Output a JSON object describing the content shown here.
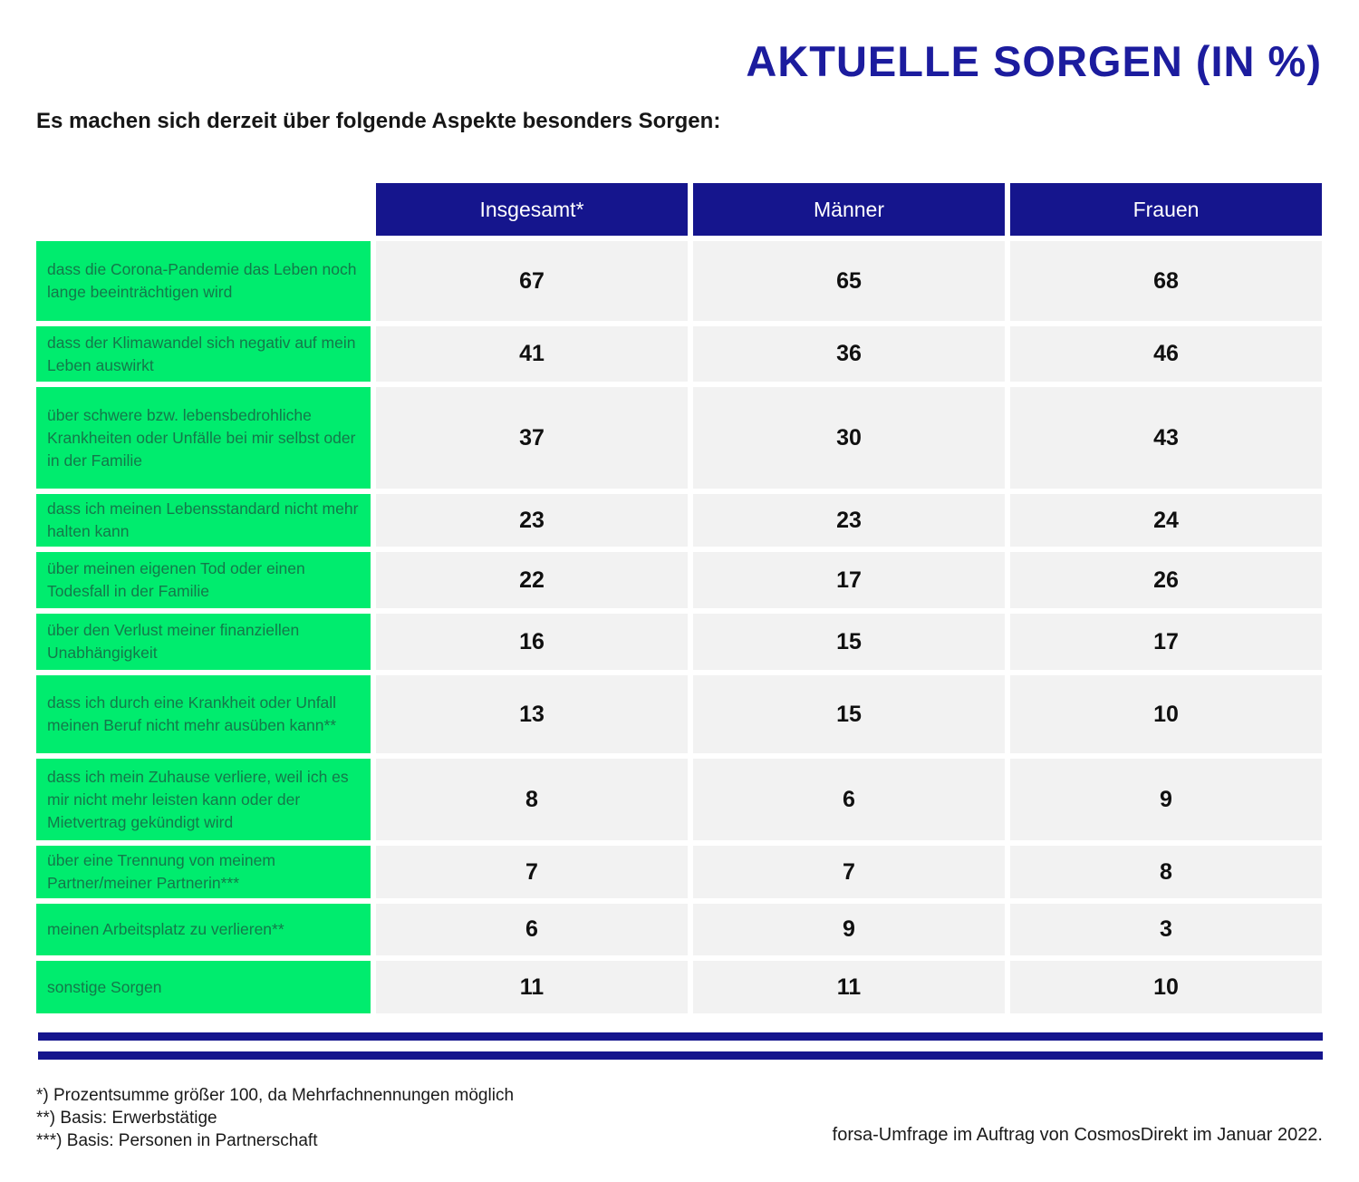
{
  "title": "AKTUELLE SORGEN (IN %)",
  "subtitle": "Es machen sich derzeit über folgende Aspekte besonders Sorgen:",
  "table": {
    "columns": [
      "Insgesamt*",
      "Männer",
      "Frauen"
    ],
    "rows": [
      {
        "label": "dass die Corona-Pandemie das Leben noch lange beeinträchtigen wird",
        "values": [
          67,
          65,
          68
        ]
      },
      {
        "label": "dass der Klimawandel sich negativ auf mein Leben auswirkt",
        "values": [
          41,
          36,
          46
        ]
      },
      {
        "label": "über schwere bzw. lebensbedrohliche Krankheiten oder Unfälle bei mir selbst oder in der Familie",
        "values": [
          37,
          30,
          43
        ]
      },
      {
        "label": "dass ich meinen Lebensstandard nicht mehr halten kann",
        "values": [
          23,
          23,
          24
        ]
      },
      {
        "label": "über meinen eigenen Tod oder einen Todesfall in der Familie",
        "values": [
          22,
          17,
          26
        ]
      },
      {
        "label": "über den Verlust meiner finanziellen Unabhängigkeit",
        "values": [
          16,
          15,
          17
        ]
      },
      {
        "label": "dass ich durch eine Krankheit oder Unfall meinen Beruf nicht mehr ausüben kann**",
        "values": [
          13,
          15,
          10
        ]
      },
      {
        "label": "dass ich mein Zuhause verliere, weil ich es mir nicht mehr leisten kann oder der Mietvertrag gekündigt wird",
        "values": [
          8,
          6,
          9
        ]
      },
      {
        "label": "über eine Trennung von meinem Partner/meiner Partnerin***",
        "values": [
          7,
          7,
          8
        ]
      },
      {
        "label": "meinen Arbeitsplatz zu verlieren**",
        "values": [
          6,
          9,
          3
        ]
      },
      {
        "label": "sonstige Sorgen",
        "values": [
          11,
          11,
          10
        ]
      }
    ]
  },
  "footnotes": [
    "*) Prozentsumme größer 100, da Mehrfachnennungen möglich",
    "**) Basis: Erwerbstätige",
    "***) Basis: Personen in Partnerschaft"
  ],
  "source": "forsa-Umfrage im Auftrag von CosmosDirekt im Januar 2022.",
  "colors": {
    "title_blue": "#1c1c9e",
    "header_navy": "#15158d",
    "label_green": "#00ec6e",
    "label_text_green": "#14784a",
    "cell_gray": "#f2f2f2"
  },
  "chart_data": {
    "type": "table",
    "title": "AKTUELLE SORGEN (IN %)",
    "subtitle": "Es machen sich derzeit über folgende Aspekte besonders Sorgen:",
    "columns": [
      "Insgesamt*",
      "Männer",
      "Frauen"
    ],
    "categories": [
      "dass die Corona-Pandemie das Leben noch lange beeinträchtigen wird",
      "dass der Klimawandel sich negativ auf mein Leben auswirkt",
      "über schwere bzw. lebensbedrohliche Krankheiten oder Unfälle bei mir selbst oder in der Familie",
      "dass ich meinen Lebensstandard nicht mehr halten kann",
      "über meinen eigenen Tod oder einen Todesfall in der Familie",
      "über den Verlust meiner finanziellen Unabhängigkeit",
      "dass ich durch eine Krankheit oder Unfall meinen Beruf nicht mehr ausüben kann**",
      "dass ich mein Zuhause verliere, weil ich es mir nicht mehr leisten kann oder der Mietvertrag gekündigt wird",
      "über eine Trennung von meinem Partner/meiner Partnerin***",
      "meinen Arbeitsplatz zu verlieren**",
      "sonstige Sorgen"
    ],
    "series": [
      {
        "name": "Insgesamt*",
        "values": [
          67,
          41,
          37,
          23,
          22,
          16,
          13,
          8,
          7,
          6,
          11
        ]
      },
      {
        "name": "Männer",
        "values": [
          65,
          36,
          30,
          23,
          17,
          15,
          15,
          6,
          7,
          9,
          11
        ]
      },
      {
        "name": "Frauen",
        "values": [
          68,
          46,
          43,
          24,
          26,
          17,
          10,
          9,
          8,
          3,
          10
        ]
      }
    ],
    "unit": "%",
    "footnotes": [
      "*) Prozentsumme größer 100, da Mehrfachnennungen möglich",
      "**) Basis: Erwerbstätige",
      "***) Basis: Personen in Partnerschaft"
    ],
    "source": "forsa-Umfrage im Auftrag von CosmosDirekt im Januar 2022."
  }
}
